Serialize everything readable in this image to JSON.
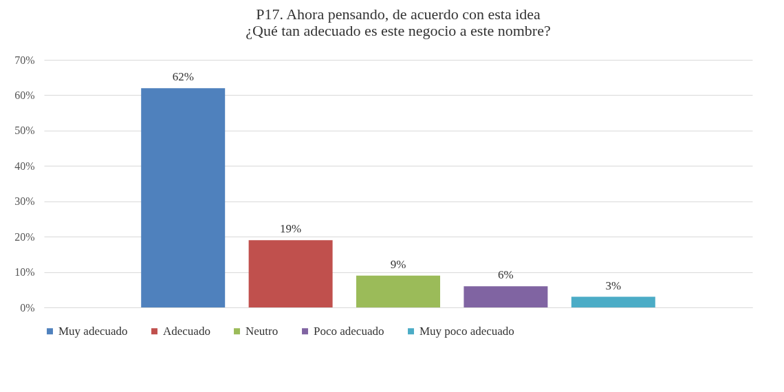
{
  "chart_data": {
    "type": "bar",
    "title": "P17. Ahora pensando, de acuerdo con esta idea ¿Qué tan adecuado es este negocio a este nombre?",
    "categories": [
      null
    ],
    "series": [
      {
        "name": "Muy adecuado",
        "color": "#4f81bd",
        "values": [
          62
        ],
        "value_labels": [
          "62%"
        ]
      },
      {
        "name": "Adecuado",
        "color": "#c0504d",
        "values": [
          19
        ],
        "value_labels": [
          "19%"
        ]
      },
      {
        "name": "Neutro",
        "color": "#9bbb59",
        "values": [
          9
        ],
        "value_labels": [
          "9%"
        ]
      },
      {
        "name": "Poco adecuado",
        "color": "#8064a2",
        "values": [
          6
        ],
        "value_labels": [
          "6%"
        ]
      },
      {
        "name": "Muy poco adecuado",
        "color": "#4bacc6",
        "values": [
          3
        ],
        "value_labels": [
          "3%"
        ]
      }
    ],
    "ylim": [
      0,
      70
    ],
    "yticks": [
      {
        "value": 0,
        "label": "0%"
      },
      {
        "value": 10,
        "label": "10%"
      },
      {
        "value": 20,
        "label": "20%"
      },
      {
        "value": 30,
        "label": "30%"
      },
      {
        "value": 40,
        "label": "40%"
      },
      {
        "value": 50,
        "label": "50%"
      },
      {
        "value": 60,
        "label": "60%"
      },
      {
        "value": 70,
        "label": "70%"
      }
    ],
    "grid": "y",
    "legend": "bottom"
  }
}
